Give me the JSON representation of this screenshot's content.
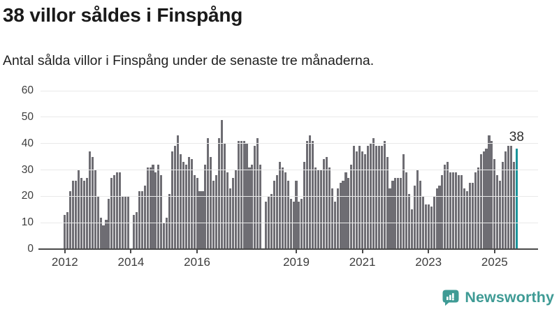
{
  "header": {
    "title": "38 villor såldes i Finspång",
    "subtitle": "Antal sålda villor i Finspång under de senaste tre månaderna."
  },
  "chart_data": {
    "type": "bar",
    "title": "38 villor såldes i Finspång",
    "subtitle": "Antal sålda villor i Finspång under de senaste tre månaderna.",
    "frequency": "monthly",
    "start_month": "2012-01",
    "end_month": "2025-09",
    "values": [
      13,
      14,
      22,
      26,
      26,
      30,
      27,
      26,
      27,
      37,
      35,
      30,
      20,
      12,
      9,
      11,
      19,
      27,
      28,
      29,
      29,
      20,
      20,
      20,
      0,
      13,
      14,
      22,
      22,
      24,
      31,
      31,
      32,
      29,
      32,
      28,
      10,
      12,
      21,
      37,
      39,
      43,
      36,
      33,
      32,
      35,
      34,
      28,
      27,
      22,
      22,
      32,
      42,
      35,
      26,
      28,
      42,
      49,
      40,
      29,
      23,
      27,
      30,
      41,
      41,
      41,
      40,
      31,
      32,
      39,
      42,
      32,
      0,
      18,
      20,
      21,
      26,
      28,
      33,
      31,
      29,
      26,
      19,
      18,
      26,
      18,
      19,
      33,
      41,
      43,
      41,
      31,
      30,
      30,
      34,
      35,
      31,
      23,
      18,
      23,
      25,
      26,
      29,
      27,
      32,
      39,
      37,
      39,
      37,
      36,
      39,
      40,
      42,
      39,
      39,
      39,
      41,
      35,
      23,
      26,
      27,
      27,
      27,
      36,
      29,
      21,
      15,
      24,
      30,
      26,
      20,
      17,
      17,
      16,
      20,
      23,
      24,
      28,
      32,
      33,
      29,
      29,
      29,
      28,
      28,
      23,
      22,
      25,
      25,
      29,
      31,
      36,
      37,
      38,
      43,
      41,
      34,
      28,
      26,
      33,
      37,
      39,
      39,
      33,
      38
    ],
    "highlight_last_value": 38,
    "last_value_label": "38",
    "ylim": [
      0,
      60
    ],
    "yticks": [
      0,
      10,
      20,
      30,
      40,
      50,
      60
    ],
    "xtick_years": [
      2012,
      2014,
      2016,
      2019,
      2021,
      2023,
      2025
    ],
    "grid": true,
    "legend": "none",
    "bar_color": "#6E6D73",
    "highlight_color": "#1B949B"
  },
  "branding": {
    "logo_text": "Newsworthy",
    "logo_color": "#3F9B95"
  }
}
